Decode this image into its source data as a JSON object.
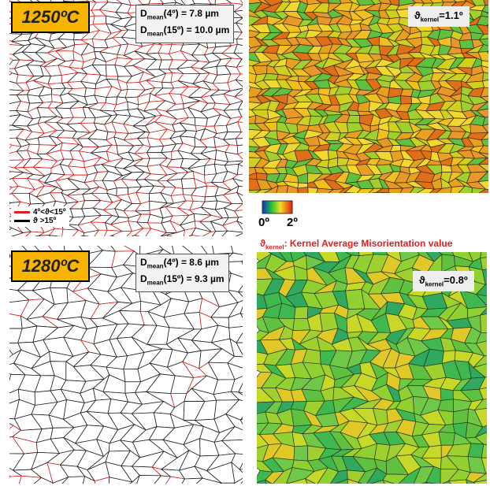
{
  "panels": [
    {
      "temperature": "1250ºC",
      "d_mean": [
        {
          "symbol": "D",
          "subscript": "mean",
          "rest": "(4º) = 7.8 µm"
        },
        {
          "symbol": "D",
          "subscript": "mean",
          "rest": "(15º) = 10.0 µm"
        }
      ],
      "kernel": {
        "symbol": "ϑ",
        "subscript": "kernel",
        "rest": "=1.1º"
      }
    },
    {
      "temperature": "1280ºC",
      "d_mean": [
        {
          "symbol": "D",
          "subscript": "mean",
          "rest": "(4º) =  8.6 µm"
        },
        {
          "symbol": "D",
          "subscript": "mean",
          "rest": "(15º) =  9.3 µm"
        }
      ],
      "kernel": {
        "symbol": "ϑ",
        "subscript": "kernel",
        "rest": "=0.8º"
      }
    }
  ],
  "legend": [
    "4º<ϑ<15º",
    "ϑ >15º"
  ],
  "colorbar": {
    "min_label": "0º",
    "max_label": "2º"
  },
  "caption": {
    "symbol": "ϑ",
    "subscript": "kernel",
    "rest": ": Kernel Average Misorientation value"
  }
}
